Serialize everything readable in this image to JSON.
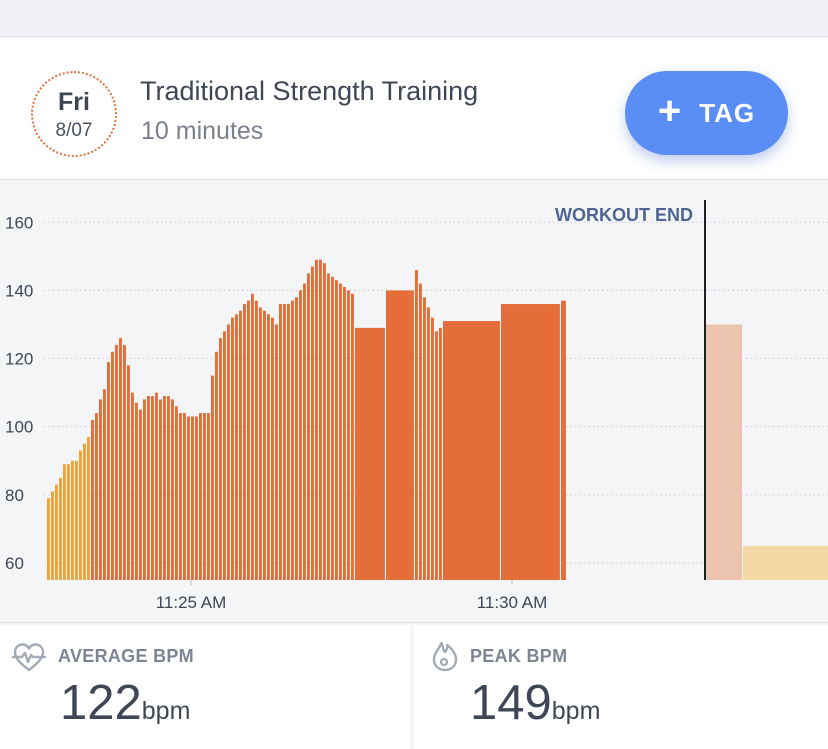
{
  "workout": {
    "day": "Fri",
    "date": "8/07",
    "title": "Traditional Strength Training",
    "duration": "10 minutes",
    "tag_button": {
      "icon": "plus-icon",
      "label": "TAG"
    }
  },
  "colors": {
    "accent_blue": "#5b8ef4",
    "workout_bar": "#e46d3a",
    "warmup_bar": "#eea33a",
    "post_workout_bar": "#ebc3ae",
    "post_low_bar": "#f5d9a5",
    "text_dark": "#3f4756"
  },
  "chart_data": {
    "type": "bar",
    "title": "",
    "xlabel": "",
    "ylabel": "",
    "ylim": [
      55,
      168
    ],
    "y_ticks": [
      "60",
      "80",
      "100",
      "120",
      "140",
      "160"
    ],
    "x_tick_labels": [
      "11:25 AM",
      "11:30 AM"
    ],
    "annotation": "WORKOUT END",
    "grid": "horizontal dotted",
    "series": [
      {
        "values": [
          79,
          81,
          83,
          85,
          89,
          89,
          90,
          90,
          93,
          95,
          97,
          102,
          104,
          108,
          111,
          119,
          122,
          124,
          126,
          124,
          118,
          110,
          107,
          105,
          108,
          109,
          109,
          110,
          108,
          109,
          109,
          108,
          106,
          104,
          104,
          103,
          103,
          103,
          104,
          104,
          104,
          115,
          122,
          126,
          128,
          130,
          132,
          133,
          134,
          136,
          137,
          139,
          137,
          135,
          134,
          133,
          132,
          130,
          136,
          136,
          136,
          137,
          138,
          140,
          142,
          145,
          147,
          149,
          149,
          148,
          145,
          144,
          143,
          142,
          141,
          140,
          139,
          129,
          140,
          146,
          142,
          138,
          135,
          132,
          128,
          129,
          131,
          136,
          137
        ]
      },
      {
        "values": [
          130
        ]
      },
      {
        "values": [
          65
        ]
      }
    ]
  },
  "stats": {
    "average": {
      "icon": "heart-pulse-icon",
      "label": "AVERAGE BPM",
      "value": "122",
      "unit": "bpm"
    },
    "peak": {
      "icon": "flame-icon",
      "label": "PEAK BPM",
      "value": "149",
      "unit": "bpm"
    }
  }
}
